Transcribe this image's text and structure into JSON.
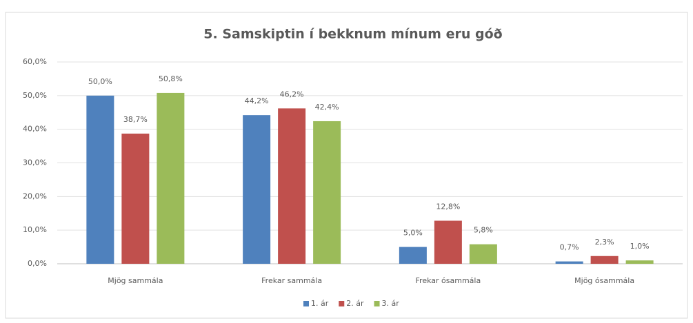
{
  "chart_data": {
    "type": "bar",
    "title": "5. Samskiptin í bekknum mínum eru góð",
    "categories": [
      "Mjög sammála",
      "Frekar sammála",
      "Frekar ósammála",
      "Mjög ósammála"
    ],
    "series": [
      {
        "name": "1. ár",
        "color": "#4f81bd",
        "values": [
          50.0,
          44.2,
          5.0,
          0.7
        ],
        "value_labels": [
          "50,0%",
          "44,2%",
          "5,0%",
          "0,7%"
        ]
      },
      {
        "name": "2. ár",
        "color": "#c0504d",
        "values": [
          38.7,
          46.2,
          12.8,
          2.3
        ],
        "value_labels": [
          "38,7%",
          "46,2%",
          "12,8%",
          "2,3%"
        ]
      },
      {
        "name": "3. ár",
        "color": "#9bbb59",
        "values": [
          50.8,
          42.4,
          5.8,
          1.0
        ],
        "value_labels": [
          "50,8%",
          "42,4%",
          "5,8%",
          "1,0%"
        ]
      }
    ],
    "ylim": [
      0,
      60
    ],
    "yticks": [
      {
        "value": 0,
        "label": "0,0%"
      },
      {
        "value": 10,
        "label": "10,0%"
      },
      {
        "value": 20,
        "label": "20,0%"
      },
      {
        "value": 30,
        "label": "30,0%"
      },
      {
        "value": 40,
        "label": "40,0%"
      },
      {
        "value": 50,
        "label": "50,0%"
      },
      {
        "value": 60,
        "label": "60,0%"
      }
    ],
    "grid": true,
    "legend": "bottom"
  }
}
